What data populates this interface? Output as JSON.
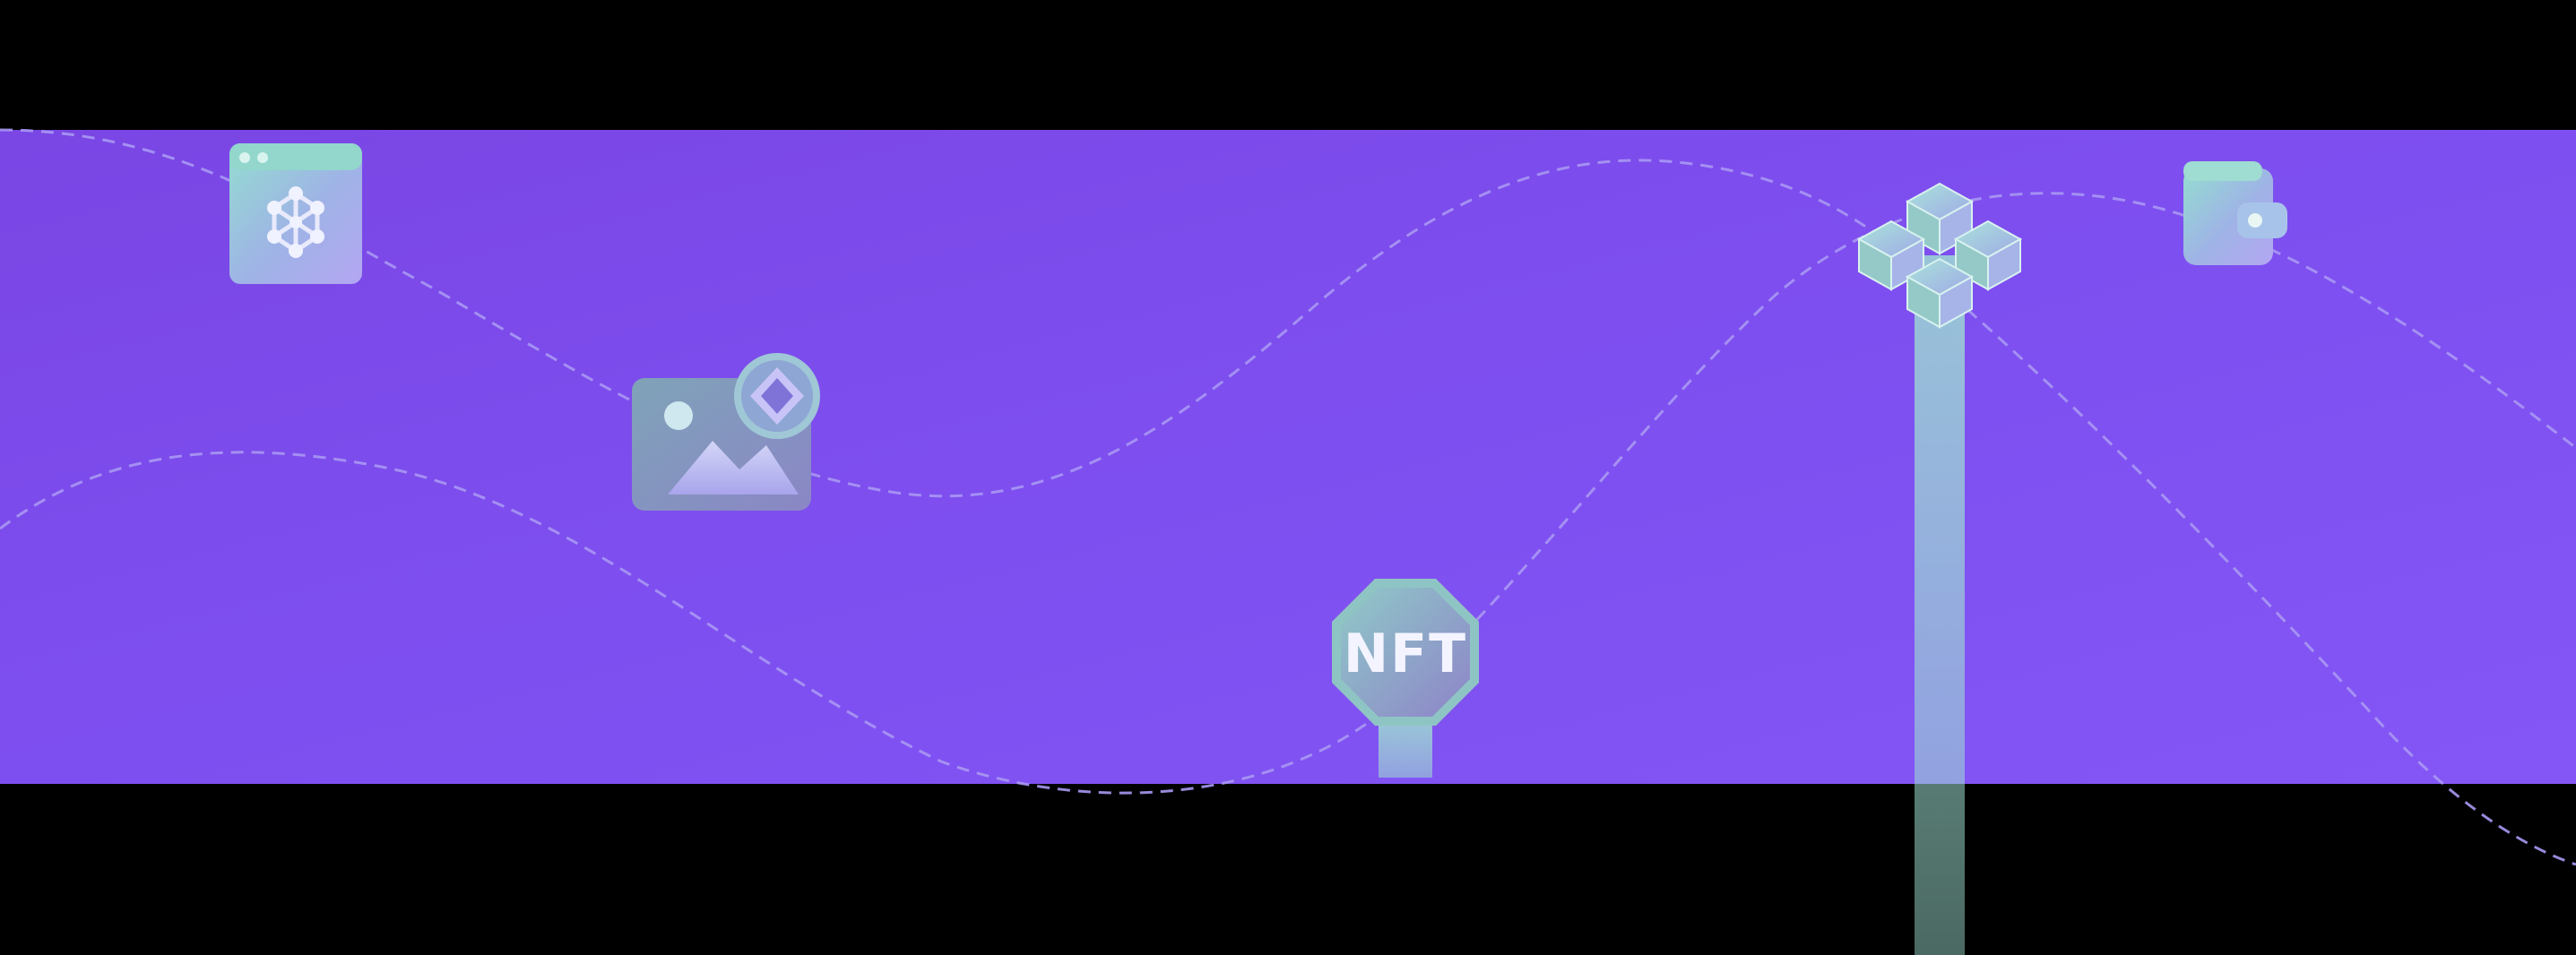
{
  "colors": {
    "background": "#000000",
    "band": "#7c4ae6",
    "curve": "#9a8cf2",
    "icon_teal": "#8fd8cc",
    "icon_lavender": "#b7b0f2",
    "icon_gray": "#8a93b8"
  },
  "icons": {
    "network_window": {
      "icon": "network-window-icon"
    },
    "image_gallery": {
      "icon": "image-gallery-icon"
    },
    "nft_badge": {
      "icon": "nft-badge-icon",
      "label": "NFT"
    },
    "blockchain_cubes": {
      "icon": "blockchain-cubes-icon"
    },
    "wallet": {
      "icon": "wallet-icon"
    }
  }
}
